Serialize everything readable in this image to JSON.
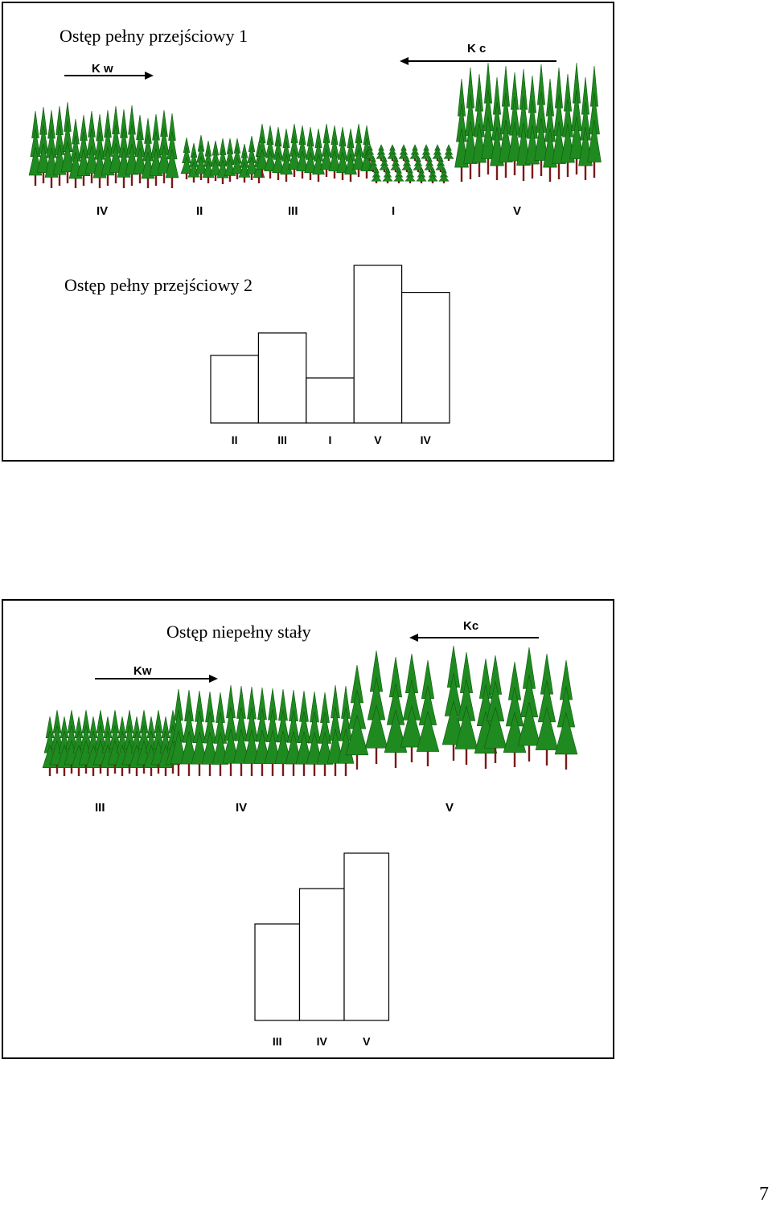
{
  "panel1": {
    "title": "Ostęp pełny przejściowy 1",
    "arrow_left_label": "K w",
    "arrow_right_label": "K c",
    "forest_labels": [
      "IV",
      "II",
      "III",
      "I",
      "V"
    ]
  },
  "panel1b": {
    "title": "Ostęp pełny przejściowy 2",
    "bar_chart": {
      "type": "bar",
      "categories": [
        "II",
        "III",
        "I",
        "V",
        "IV"
      ],
      "values": [
        3,
        4,
        2,
        7,
        5.8
      ]
    }
  },
  "panel2": {
    "title": "Ostęp niepełny stały",
    "arrow_left_label": "Kw",
    "arrow_right_label": "Kc",
    "forest_labels": [
      "III",
      "IV",
      "V"
    ],
    "bar_chart": {
      "type": "bar",
      "categories": [
        "III",
        "IV",
        "V"
      ],
      "values": [
        3,
        4.1,
        5.2
      ]
    }
  },
  "page_number": "7",
  "colors": {
    "tree": "#1f8a1f",
    "tree_dark": "#0f5a0f",
    "trunk": "#7a1a1a"
  }
}
